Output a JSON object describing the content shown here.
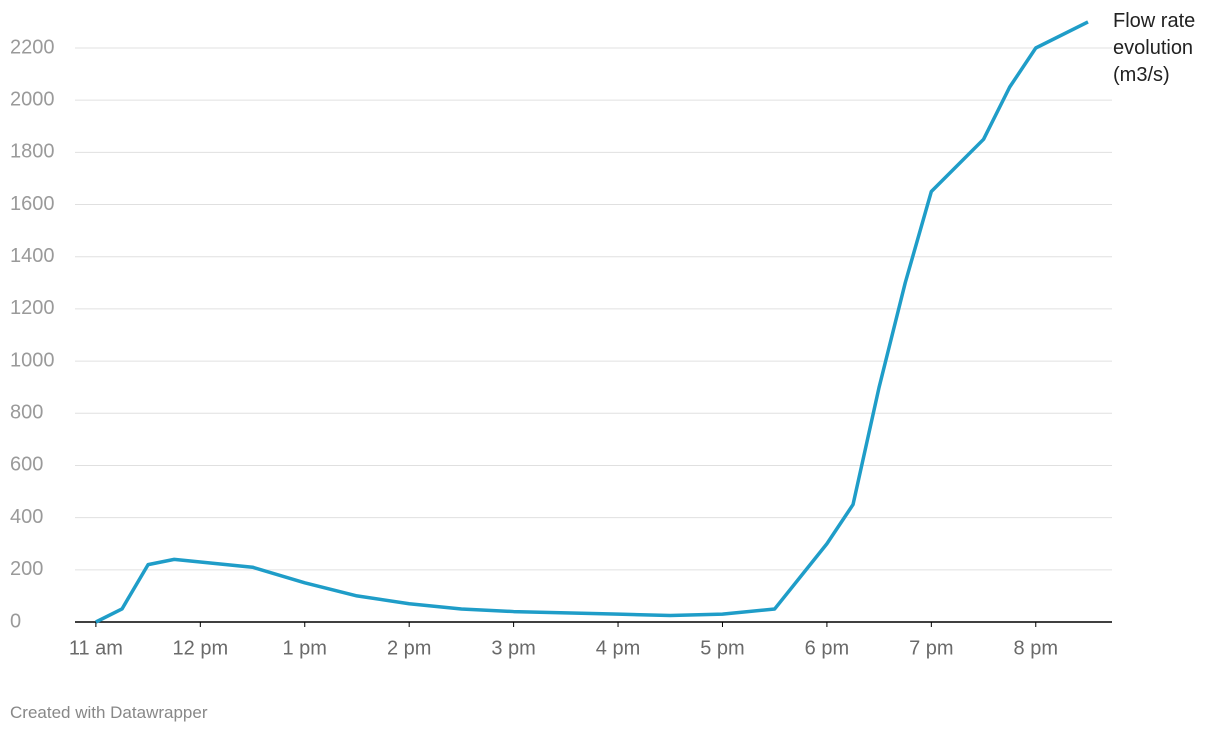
{
  "chart_data": {
    "type": "line",
    "x": [
      11,
      11.25,
      11.5,
      11.75,
      12.5,
      13,
      13.5,
      14,
      14.5,
      15,
      15.5,
      16,
      16.5,
      17,
      17.5,
      18,
      18.25,
      18.5,
      18.75,
      19,
      19.5,
      19.75,
      20,
      20.5
    ],
    "series": [
      {
        "name": "Flow rate evolution (m3/s)",
        "color": "#1f9dc8",
        "values": [
          0,
          50,
          220,
          240,
          210,
          150,
          100,
          70,
          50,
          40,
          35,
          30,
          25,
          30,
          50,
          300,
          450,
          900,
          1300,
          1650,
          1850,
          2050,
          2200,
          2300
        ]
      }
    ],
    "xlim": [
      10.8,
      20.73
    ],
    "xticks": [
      {
        "value": 11,
        "label": "11 am"
      },
      {
        "value": 12,
        "label": "12 pm"
      },
      {
        "value": 13,
        "label": "1 pm"
      },
      {
        "value": 14,
        "label": "2 pm"
      },
      {
        "value": 15,
        "label": "3 pm"
      },
      {
        "value": 16,
        "label": "4 pm"
      },
      {
        "value": 17,
        "label": "5 pm"
      },
      {
        "value": 18,
        "label": "6 pm"
      },
      {
        "value": 19,
        "label": "7 pm"
      },
      {
        "value": 20,
        "label": "8 pm"
      }
    ],
    "ylim": [
      0,
      2200
    ],
    "yticks": [
      0,
      200,
      400,
      600,
      800,
      1000,
      1200,
      1400,
      1600,
      1800,
      2000,
      2200
    ],
    "grid": true,
    "credit": "Created with Datawrapper"
  }
}
